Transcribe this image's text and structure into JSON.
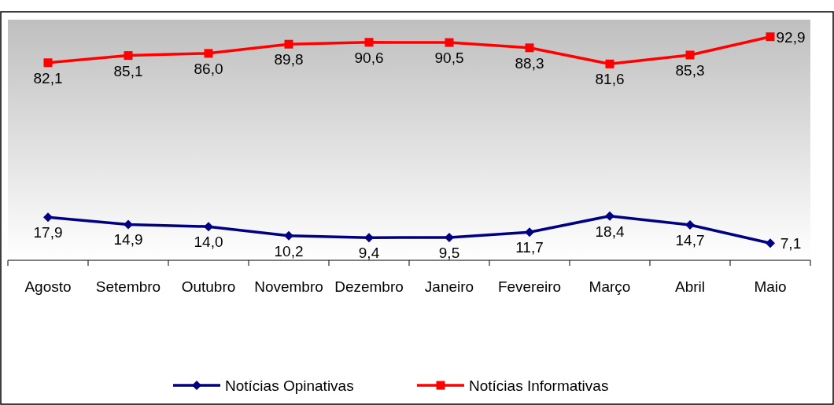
{
  "chart_data": {
    "type": "line",
    "categories": [
      "Agosto",
      "Setembro",
      "Outubro",
      "Novembro",
      "Dezembro",
      "Janeiro",
      "Fevereiro",
      "Março",
      "Abril",
      "Maio"
    ],
    "series": [
      {
        "name": "Notícias Opinativas",
        "color": "#000080",
        "marker": "diamond",
        "values": [
          17.9,
          14.9,
          14.0,
          10.2,
          9.4,
          9.5,
          11.7,
          18.4,
          14.7,
          7.1
        ],
        "value_labels": [
          "17,9",
          "14,9",
          "14,0",
          "10,2",
          "9,4",
          "9,5",
          "11,7",
          "18,4",
          "14,7",
          "7,1"
        ]
      },
      {
        "name": "Notícias Informativas",
        "color": "#ff0000",
        "marker": "square",
        "values": [
          82.1,
          85.1,
          86.0,
          89.8,
          90.6,
          90.5,
          88.3,
          81.6,
          85.3,
          92.9
        ],
        "value_labels": [
          "82,1",
          "85,1",
          "86,0",
          "89,8",
          "90,6",
          "90,5",
          "88,3",
          "81,6",
          "85,3",
          "92,9"
        ]
      }
    ],
    "ylim": [
      0,
      100
    ],
    "legend": "bottom"
  }
}
